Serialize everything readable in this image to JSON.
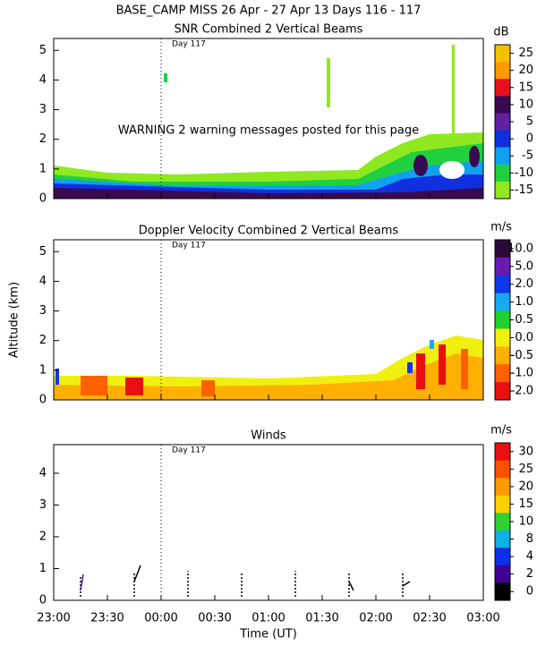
{
  "header": {
    "title": "BASE_CAMP MISS  26 Apr - 27 Apr 13 Days 116 - 117"
  },
  "chart_data": [
    {
      "type": "heatmap",
      "title": "SNR Combined 2 Vertical Beams",
      "annotation": "Day 117",
      "warning": "WARNING  2 warning messages posted for this page",
      "ylim": [
        0,
        5.4
      ],
      "yticks": [
        0,
        1,
        2,
        3,
        4,
        5
      ],
      "colorbar": {
        "unit": "dB",
        "colors": [
          "#f5c000",
          "#ff9a00",
          "#e8101c",
          "#3a0a50",
          "#6020a0",
          "#1030e0",
          "#10a0f0",
          "#20d040",
          "#90e820"
        ],
        "ticks": [
          25,
          20,
          15,
          10,
          5,
          0,
          -5,
          -10,
          -15
        ]
      }
    },
    {
      "type": "heatmap",
      "title": "Doppler Velocity Combined 2 Vertical Beams",
      "annotation": "Day 117",
      "ylabel": "Altitude (km)",
      "ylim": [
        0,
        5.4
      ],
      "yticks": [
        0,
        1,
        2,
        3,
        4,
        5
      ],
      "colorbar": {
        "unit": "m/s",
        "colors": [
          "#2a0a3a",
          "#6a1ab0",
          "#1038e8",
          "#18a8f0",
          "#20d030",
          "#f0f010",
          "#ffb000",
          "#ff6000",
          "#e81010"
        ],
        "ticks": [
          {
            "value": 10,
            "label": "10.0"
          },
          {
            "value": 5,
            "label": "5.0"
          },
          {
            "value": 2,
            "label": "2.0"
          },
          {
            "value": 1,
            "label": "1.0"
          },
          0.5,
          {
            "value": 0,
            "label": "0.0"
          },
          -0.5,
          {
            "value": -1,
            "label": "-1.0"
          },
          {
            "value": -2,
            "label": "-2.0"
          }
        ]
      }
    },
    {
      "type": "winds",
      "title": "Winds",
      "annotation": "Day 117",
      "xlabel": "Time (UT)",
      "ylim": [
        0,
        4.9
      ],
      "yticks": [
        0,
        1,
        2,
        3,
        4
      ],
      "xlim": [
        0,
        4
      ],
      "xticks": [
        {
          "value": 0,
          "label": "23:00"
        },
        {
          "value": 0.5,
          "label": "23:30"
        },
        {
          "value": 1,
          "label": "00:00"
        },
        {
          "value": 1.5,
          "label": "00:30"
        },
        {
          "value": 2,
          "label": "01:00"
        },
        {
          "value": 2.5,
          "label": "01:30"
        },
        {
          "value": 3,
          "label": "02:00"
        },
        {
          "value": 3.5,
          "label": "02:30"
        },
        {
          "value": 4,
          "label": "03:00"
        }
      ],
      "colorbar": {
        "unit": "m/s",
        "colors": [
          "#e81010",
          "#ff5000",
          "#ff9a00",
          "#ffd000",
          "#30d030",
          "#10b0e0",
          "#1030e8",
          "#400090",
          "#000000"
        ],
        "ticks": [
          30,
          25,
          20,
          15,
          10,
          8,
          4,
          2,
          0
        ]
      }
    }
  ]
}
